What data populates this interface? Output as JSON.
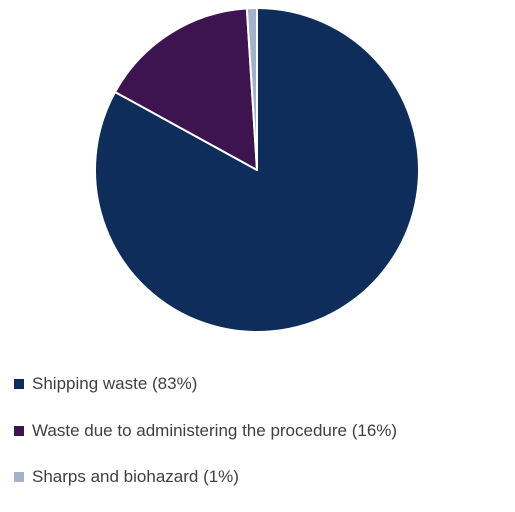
{
  "chart_data": {
    "type": "pie",
    "title": "",
    "categories": [
      "Shipping waste (83%)",
      "Waste due to administering the procedure (16%)",
      "Sharps and biohazard (1%)"
    ],
    "values": [
      83,
      16,
      1
    ],
    "colors": [
      "#0e2d5a",
      "#3d1450",
      "#a3b2c9"
    ],
    "legend_placement": "bottom"
  }
}
